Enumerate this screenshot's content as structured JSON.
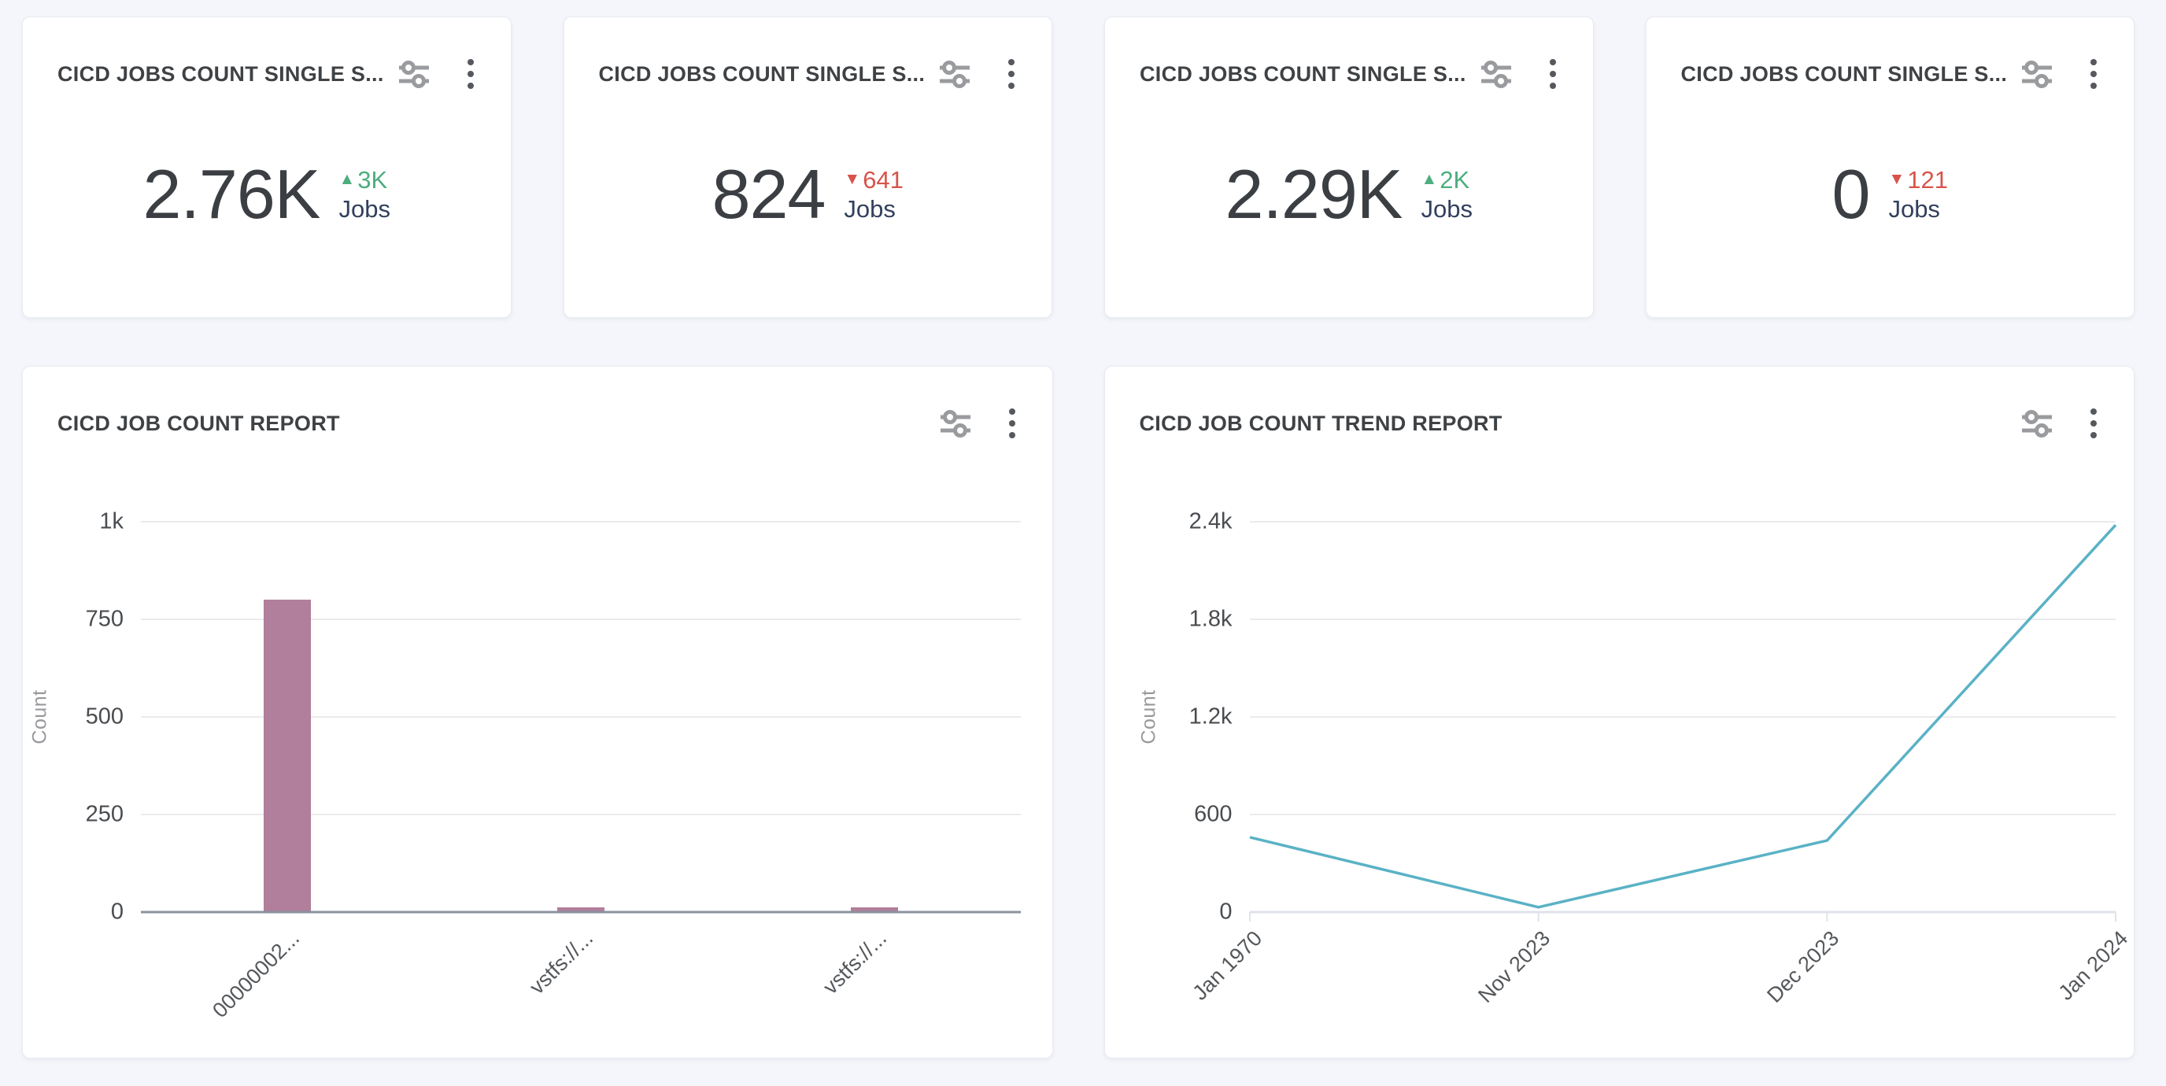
{
  "colors": {
    "up": "#4cae7e",
    "down": "#d8544b",
    "unit_label": "#32405e",
    "value": "#3b3e42",
    "title": "#3f4245",
    "page_background": "#f4f6fb",
    "card_background": "#ffffff",
    "tune_icon": "#999b9e",
    "kebab_icon": "#55585c",
    "grid_line": "#ebebee",
    "bar_axis_line": "#8b919e",
    "line_axis_line": "#dfe3ea"
  },
  "icons": {
    "settings": "tune-icon",
    "menu": "kebab-menu-icon",
    "up": "triangle-up-icon",
    "down": "triangle-down-icon"
  },
  "stat_cards": [
    {
      "title": "CICD JOBS COUNT SINGLE S...",
      "value": "2.76K",
      "delta": "3K",
      "delta_direction": "up",
      "unit": "Jobs"
    },
    {
      "title": "CICD JOBS COUNT SINGLE S...",
      "value": "824",
      "delta": "641",
      "delta_direction": "down",
      "unit": "Jobs"
    },
    {
      "title": "CICD JOBS COUNT SINGLE S...",
      "value": "2.29K",
      "delta": "2K",
      "delta_direction": "up",
      "unit": "Jobs"
    },
    {
      "title": "CICD JOBS COUNT SINGLE S...",
      "value": "0",
      "delta": "121",
      "delta_direction": "down",
      "unit": "Jobs"
    }
  ],
  "chart_data": [
    {
      "type": "bar",
      "title": "CICD JOB COUNT REPORT",
      "categories": [
        "00000002...",
        "vstfs://...",
        "vstfs://..."
      ],
      "values": [
        800,
        12,
        12
      ],
      "xlabel": "",
      "ylabel": "Count",
      "ylim": [
        0,
        1000
      ],
      "yticks": [
        0,
        250,
        500,
        750,
        1000
      ],
      "ytick_labels": [
        "0",
        "250",
        "500",
        "750",
        "1k"
      ],
      "bar_color": "#b17e9b",
      "grid": true,
      "legend": false,
      "xtick_rotation": 45
    },
    {
      "type": "line",
      "title": "CICD JOB COUNT TREND REPORT",
      "x": [
        "Jan 1970",
        "Nov 2023",
        "Dec 2023",
        "Jan 2024"
      ],
      "values": [
        460,
        30,
        440,
        2380
      ],
      "xlabel": "",
      "ylabel": "Count",
      "ylim": [
        0,
        2400
      ],
      "yticks": [
        0,
        600,
        1200,
        1800,
        2400
      ],
      "ytick_labels": [
        "0",
        "600",
        "1.2k",
        "1.8k",
        "2.4k"
      ],
      "line_color": "#5ab2c5",
      "grid": true,
      "legend": false,
      "xtick_rotation": 45
    }
  ]
}
